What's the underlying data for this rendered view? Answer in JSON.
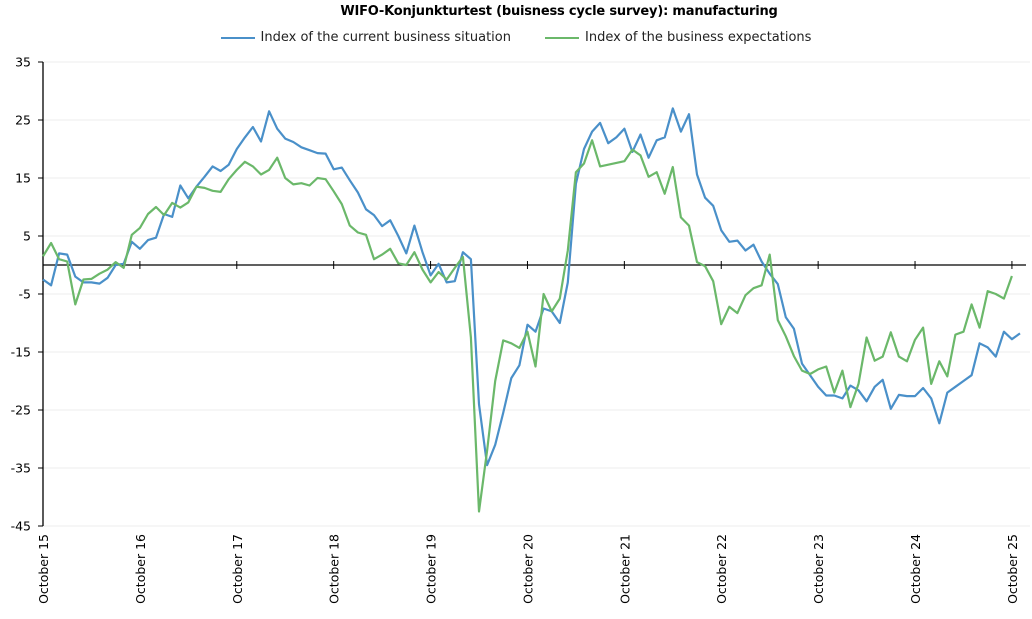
{
  "chart_data": {
    "type": "line",
    "title": "WIFO-Konjunkturtest (buisness cycle survey): manufacturing",
    "xlabel": "",
    "ylabel": "",
    "ylim": [
      -45,
      35
    ],
    "yticks": [
      35,
      25,
      15,
      5,
      -5,
      -15,
      -25,
      -35,
      -45
    ],
    "grid": true,
    "legend_position": "top-center",
    "x_tick_labels": [
      "October 15",
      "October 16",
      "October 17",
      "October 18",
      "October 19",
      "October 20",
      "October 21",
      "October 22",
      "October 23",
      "October 24",
      "October 25"
    ],
    "x_start": "2015-10",
    "x_end": "2025-10",
    "frequency": "monthly",
    "series": [
      {
        "name": "Index of the current business situation",
        "color": "#4a90c9",
        "values": [
          -2.5,
          -3.5,
          2,
          1.8,
          -2,
          -3,
          -3,
          -3.2,
          -2.2,
          0,
          0.2,
          4,
          2.8,
          4.3,
          4.7,
          8.8,
          8.3,
          13.7,
          11.5,
          13.5,
          15.2,
          17,
          16.2,
          17.3,
          20,
          22,
          23.8,
          21.3,
          26.5,
          23.5,
          21.8,
          21.2,
          20.3,
          19.8,
          19.3,
          19.2,
          16.5,
          16.8,
          14.6,
          12.5,
          9.6,
          8.6,
          6.7,
          7.7,
          5,
          2,
          6.8,
          2.2,
          -1.8,
          0.2,
          -3,
          -2.8,
          2.2,
          1,
          -24,
          -34.5,
          -31,
          -25.5,
          -19.5,
          -17.3,
          -10.3,
          -11.5,
          -7.5,
          -8,
          -10,
          -3,
          14,
          20,
          23,
          24.5,
          21,
          22,
          23.5,
          19.5,
          22.5,
          18.5,
          21.5,
          22,
          27,
          23,
          26,
          15.6,
          11.6,
          10.2,
          6,
          4,
          4.2,
          2.5,
          3.5,
          0.6,
          -1.5,
          -3.3,
          -9,
          -11,
          -17,
          -19,
          -21,
          -22.5,
          -22.5,
          -23,
          -20.8,
          -21.6,
          -23.5,
          -21,
          -19.8,
          -24.8,
          -22.4,
          -22.6,
          -22.6,
          -21.2,
          -23,
          -27.3,
          -22,
          -21,
          -20,
          -19,
          -13.5,
          -14.2,
          -15.8,
          -11.5,
          -12.8,
          -11.8
        ]
      },
      {
        "name": "Index of the business expectations",
        "color": "#6bb86a",
        "values": [
          1.5,
          3.8,
          1,
          0.6,
          -6.8,
          -2.5,
          -2.4,
          -1.5,
          -0.8,
          0.5,
          -0.5,
          5.2,
          6.4,
          8.8,
          10,
          8.6,
          10.7,
          9.9,
          10.8,
          13.5,
          13.3,
          12.8,
          12.6,
          14.8,
          16.4,
          17.8,
          17,
          15.6,
          16.4,
          18.5,
          15,
          13.9,
          14.1,
          13.7,
          15,
          14.8,
          12.7,
          10.5,
          6.8,
          5.6,
          5.2,
          1,
          1.8,
          2.8,
          0.3,
          0,
          2.2,
          -0.8,
          -3,
          -1.2,
          -2.5,
          -0.5,
          1.4,
          -12.5,
          -42.5,
          -32,
          -20,
          -13,
          -13.5,
          -14.3,
          -11.5,
          -17.5,
          -5,
          -8,
          -5.8,
          2.5,
          16,
          17.5,
          21.5,
          17,
          17.3,
          17.6,
          17.9,
          19.9,
          18.9,
          15.2,
          16,
          12.3,
          16.9,
          8.2,
          6.8,
          0.5,
          -0.2,
          -2.8,
          -10.2,
          -7.2,
          -8.3,
          -5.2,
          -4,
          -3.5,
          1.8,
          -9.5,
          -12.3,
          -15.7,
          -18.2,
          -18.8,
          -18,
          -17.5,
          -22,
          -18.2,
          -24.5,
          -20.5,
          -12.5,
          -16.5,
          -15.8,
          -11.6,
          -15.8,
          -16.6,
          -12.9,
          -10.8,
          -20.5,
          -16.6,
          -19.2,
          -12,
          -11.5,
          -6.8,
          -10.8,
          -4.5,
          -5,
          -5.8,
          -1.9
        ]
      }
    ]
  }
}
